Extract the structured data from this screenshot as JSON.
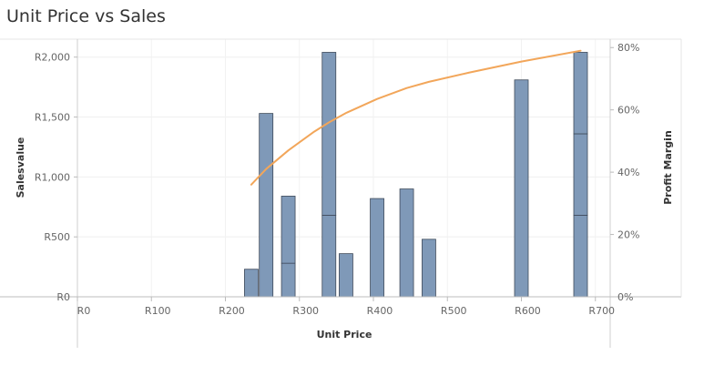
{
  "chart_data": {
    "type": "bar",
    "title": "Unit Price vs Sales",
    "xlabel": "Unit Price",
    "ylabel": "Salesvalue",
    "y2label": "Profit Margin",
    "xlim": [
      0,
      720
    ],
    "ylim": [
      0,
      2150
    ],
    "y2lim": [
      0,
      0.827
    ],
    "x_ticks": [
      0,
      100,
      200,
      300,
      400,
      500,
      600,
      700
    ],
    "x_tick_labels": [
      "R0",
      "R100",
      "R200",
      "R300",
      "R400",
      "R500",
      "R600",
      "R700"
    ],
    "y_ticks": [
      0,
      500,
      1000,
      1500,
      2000
    ],
    "y_tick_labels": [
      "R0",
      "R500",
      "R1,000",
      "R1,500",
      "R2,000"
    ],
    "y2_ticks": [
      0,
      0.2,
      0.4,
      0.6,
      0.8
    ],
    "y2_tick_labels": [
      "0%",
      "20%",
      "40%",
      "60%",
      "80%"
    ],
    "grid": true,
    "bar_color": "#7f99b8",
    "bar_border_color": "#3f4a5a",
    "line_color": "#f2a65a",
    "bars": [
      {
        "x": 235,
        "segments": [
          230
        ]
      },
      {
        "x": 255,
        "segments": [
          1530
        ]
      },
      {
        "x": 285,
        "segments": [
          280,
          560
        ]
      },
      {
        "x": 340,
        "segments": [
          680,
          1360
        ]
      },
      {
        "x": 363,
        "segments": [
          360
        ]
      },
      {
        "x": 405,
        "segments": [
          820
        ]
      },
      {
        "x": 445,
        "segments": [
          900
        ]
      },
      {
        "x": 475,
        "segments": [
          480
        ]
      },
      {
        "x": 600,
        "segments": [
          1810
        ]
      },
      {
        "x": 680,
        "segments": [
          680,
          680,
          680
        ]
      }
    ],
    "series": [
      {
        "type": "line",
        "axis": "y2",
        "x": [
          235,
          255,
          285,
          320,
          340,
          363,
          405,
          445,
          475,
          530,
          600,
          680
        ],
        "y": [
          0.36,
          0.41,
          0.47,
          0.53,
          0.56,
          0.59,
          0.635,
          0.67,
          0.69,
          0.72,
          0.755,
          0.79
        ]
      }
    ]
  }
}
